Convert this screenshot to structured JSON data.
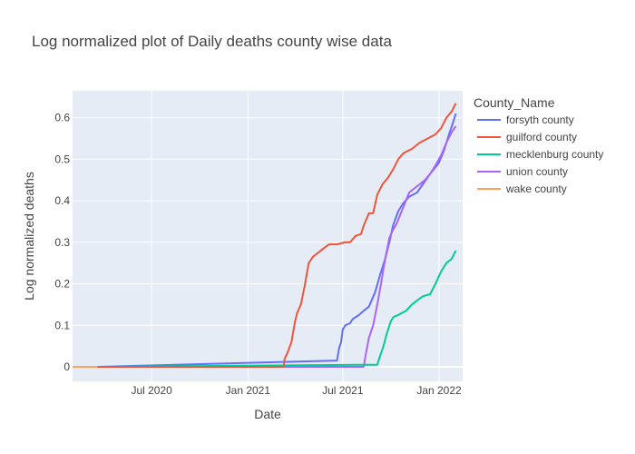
{
  "chart_data": {
    "type": "line",
    "title": "Log normalized plot of Daily deaths county wise data",
    "xlabel": "Date",
    "ylabel": "Log normalized deaths",
    "x_domain": [
      "2020-02-01",
      "2022-02-15"
    ],
    "ylim": [
      -0.035,
      0.665
    ],
    "x_ticks": [
      {
        "date": "2020-07-01",
        "label": "Jul 2020"
      },
      {
        "date": "2021-01-01",
        "label": "Jan 2021"
      },
      {
        "date": "2021-07-01",
        "label": "Jul 2021"
      },
      {
        "date": "2022-01-01",
        "label": "Jan 2022"
      }
    ],
    "y_ticks": [
      {
        "value": 0,
        "label": "0"
      },
      {
        "value": 0.1,
        "label": "0.1"
      },
      {
        "value": 0.2,
        "label": "0.2"
      },
      {
        "value": 0.3,
        "label": "0.3"
      },
      {
        "value": 0.4,
        "label": "0.4"
      },
      {
        "value": 0.5,
        "label": "0.5"
      },
      {
        "value": 0.6,
        "label": "0.6"
      }
    ],
    "grid": true,
    "legend_title": "County_Name",
    "legend_position": "right",
    "series": [
      {
        "name": "forsyth county",
        "color": "#636efa",
        "points": [
          [
            "2020-03-20",
            0
          ],
          [
            "2021-06-20",
            0.015
          ],
          [
            "2021-06-24",
            0.045
          ],
          [
            "2021-06-28",
            0.06
          ],
          [
            "2021-07-01",
            0.09
          ],
          [
            "2021-07-06",
            0.1
          ],
          [
            "2021-07-15",
            0.105
          ],
          [
            "2021-07-20",
            0.115
          ],
          [
            "2021-08-01",
            0.125
          ],
          [
            "2021-08-10",
            0.135
          ],
          [
            "2021-08-20",
            0.145
          ],
          [
            "2021-09-01",
            0.18
          ],
          [
            "2021-09-10",
            0.22
          ],
          [
            "2021-09-20",
            0.26
          ],
          [
            "2021-09-28",
            0.3
          ],
          [
            "2021-10-05",
            0.34
          ],
          [
            "2021-10-15",
            0.375
          ],
          [
            "2021-10-25",
            0.395
          ],
          [
            "2021-11-05",
            0.41
          ],
          [
            "2021-11-20",
            0.42
          ],
          [
            "2021-12-01",
            0.44
          ],
          [
            "2021-12-15",
            0.465
          ],
          [
            "2021-12-31",
            0.49
          ],
          [
            "2022-01-10",
            0.52
          ],
          [
            "2022-01-20",
            0.56
          ],
          [
            "2022-01-28",
            0.59
          ],
          [
            "2022-02-02",
            0.61
          ]
        ]
      },
      {
        "name": "guilford county",
        "color": "#ef553b",
        "points": [
          [
            "2020-03-20",
            0
          ],
          [
            "2021-03-10",
            0
          ],
          [
            "2021-03-12",
            0.02
          ],
          [
            "2021-03-18",
            0.035
          ],
          [
            "2021-03-25",
            0.06
          ],
          [
            "2021-04-01",
            0.11
          ],
          [
            "2021-04-05",
            0.13
          ],
          [
            "2021-04-12",
            0.15
          ],
          [
            "2021-04-20",
            0.2
          ],
          [
            "2021-04-27",
            0.25
          ],
          [
            "2021-05-05",
            0.265
          ],
          [
            "2021-05-15",
            0.275
          ],
          [
            "2021-05-25",
            0.285
          ],
          [
            "2021-06-05",
            0.295
          ],
          [
            "2021-06-20",
            0.295
          ],
          [
            "2021-07-05",
            0.3
          ],
          [
            "2021-07-15",
            0.3
          ],
          [
            "2021-07-25",
            0.315
          ],
          [
            "2021-08-05",
            0.32
          ],
          [
            "2021-08-10",
            0.34
          ],
          [
            "2021-08-20",
            0.37
          ],
          [
            "2021-08-28",
            0.37
          ],
          [
            "2021-09-05",
            0.415
          ],
          [
            "2021-09-15",
            0.44
          ],
          [
            "2021-09-25",
            0.455
          ],
          [
            "2021-10-05",
            0.475
          ],
          [
            "2021-10-15",
            0.5
          ],
          [
            "2021-10-25",
            0.515
          ],
          [
            "2021-11-10",
            0.525
          ],
          [
            "2021-11-25",
            0.54
          ],
          [
            "2021-12-10",
            0.55
          ],
          [
            "2021-12-25",
            0.56
          ],
          [
            "2022-01-05",
            0.575
          ],
          [
            "2022-01-15",
            0.6
          ],
          [
            "2022-01-25",
            0.615
          ],
          [
            "2022-02-02",
            0.635
          ]
        ]
      },
      {
        "name": "mecklenburg county",
        "color": "#00cc96",
        "points": [
          [
            "2020-03-20",
            0
          ],
          [
            "2021-08-20",
            0.005
          ],
          [
            "2021-09-05",
            0.005
          ],
          [
            "2021-09-10",
            0.025
          ],
          [
            "2021-09-17",
            0.05
          ],
          [
            "2021-09-22",
            0.075
          ],
          [
            "2021-09-27",
            0.095
          ],
          [
            "2021-10-01",
            0.11
          ],
          [
            "2021-10-06",
            0.12
          ],
          [
            "2021-10-15",
            0.125
          ],
          [
            "2021-10-30",
            0.135
          ],
          [
            "2021-11-10",
            0.15
          ],
          [
            "2021-11-20",
            0.16
          ],
          [
            "2021-12-01",
            0.17
          ],
          [
            "2021-12-15",
            0.175
          ],
          [
            "2021-12-25",
            0.2
          ],
          [
            "2022-01-05",
            0.23
          ],
          [
            "2022-01-15",
            0.25
          ],
          [
            "2022-01-25",
            0.26
          ],
          [
            "2022-02-02",
            0.28
          ]
        ]
      },
      {
        "name": "union county",
        "color": "#ab63fa",
        "points": [
          [
            "2020-03-20",
            0
          ],
          [
            "2021-08-10",
            0
          ],
          [
            "2021-08-14",
            0.03
          ],
          [
            "2021-08-20",
            0.07
          ],
          [
            "2021-08-28",
            0.1
          ],
          [
            "2021-09-05",
            0.15
          ],
          [
            "2021-09-12",
            0.2
          ],
          [
            "2021-09-20",
            0.26
          ],
          [
            "2021-09-28",
            0.31
          ],
          [
            "2021-10-05",
            0.33
          ],
          [
            "2021-10-12",
            0.345
          ],
          [
            "2021-10-20",
            0.37
          ],
          [
            "2021-10-28",
            0.395
          ],
          [
            "2021-11-05",
            0.42
          ],
          [
            "2021-11-15",
            0.43
          ],
          [
            "2021-11-25",
            0.44
          ],
          [
            "2021-12-05",
            0.45
          ],
          [
            "2021-12-15",
            0.465
          ],
          [
            "2021-12-25",
            0.485
          ],
          [
            "2022-01-05",
            0.51
          ],
          [
            "2022-01-15",
            0.54
          ],
          [
            "2022-01-25",
            0.565
          ],
          [
            "2022-02-02",
            0.58
          ]
        ]
      },
      {
        "name": "wake county",
        "color": "#ffa15a",
        "points": [
          [
            "2020-02-01",
            0
          ],
          [
            "2020-03-20",
            0
          ]
        ]
      }
    ]
  }
}
